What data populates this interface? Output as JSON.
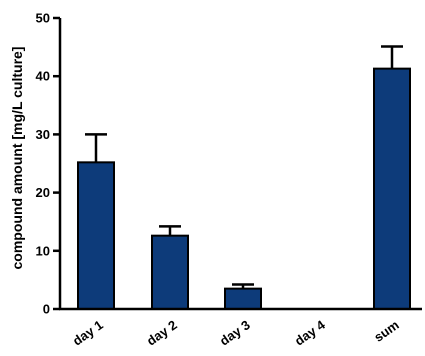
{
  "chart_data": {
    "type": "bar",
    "title": "",
    "xlabel": "",
    "ylabel": "compound amount [mg/L culture]",
    "categories": [
      "day 1",
      "day 2",
      "day 3",
      "day 4",
      "sum"
    ],
    "values": [
      25.2,
      12.6,
      3.5,
      0,
      41.3
    ],
    "errors": [
      4.8,
      1.6,
      0.7,
      0,
      3.8
    ],
    "ylim": [
      0,
      50
    ],
    "yticks": [
      0,
      10,
      20,
      30,
      40,
      50
    ],
    "grid": false,
    "bar_color": "#0d3b7a",
    "x_tick_rotation": -35
  }
}
